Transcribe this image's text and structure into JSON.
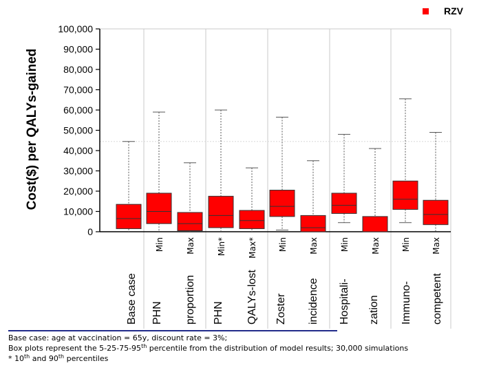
{
  "chart_data": {
    "type": "box",
    "ylabel": "Cost($) per QALYs-gained",
    "ylim": [
      0,
      100000
    ],
    "ytick_labels": [
      "0",
      "10,000",
      "20,000",
      "30,000",
      "40,000",
      "50,000",
      "60,000",
      "70,000",
      "80,000",
      "90,000",
      "100,000"
    ],
    "ytick_values": [
      0,
      10000,
      20000,
      30000,
      40000,
      50000,
      60000,
      70000,
      80000,
      90000,
      100000
    ],
    "legend": {
      "label": "RZV",
      "color": "#ff0000",
      "position": "top-right"
    },
    "box_color": "#ff0000",
    "reference_line": 44500,
    "groups": [
      {
        "label": "Base case",
        "label_lines": [
          "Base case"
        ],
        "boxes": [
          "base"
        ]
      },
      {
        "label": "PHN proportion",
        "label_lines": [
          "PHN",
          "proportion"
        ],
        "boxes": [
          "phn_prop_min",
          "phn_prop_max"
        ]
      },
      {
        "label": "PHN QALYs-lost",
        "label_lines": [
          "PHN",
          "QALYs-lost"
        ],
        "boxes": [
          "phn_qaly_min",
          "phn_qaly_max"
        ]
      },
      {
        "label": "Zoster incidence",
        "label_lines": [
          "Zoster",
          "incidence"
        ],
        "boxes": [
          "zoster_min",
          "zoster_max"
        ]
      },
      {
        "label": "Hospitalization",
        "label_lines": [
          "Hospitali-",
          "zation"
        ],
        "boxes": [
          "hosp_min",
          "hosp_max"
        ]
      },
      {
        "label": "Immunocompetent",
        "label_lines": [
          "Immuno-",
          "competent"
        ],
        "boxes": [
          "immuno_min",
          "immuno_max"
        ]
      }
    ],
    "series": [
      {
        "id": "base",
        "tick": "",
        "p5": 0,
        "p25": 1500,
        "median": 6500,
        "p75": 13500,
        "p95": 44500
      },
      {
        "id": "phn_prop_min",
        "tick": "Min",
        "p5": 0,
        "p25": 4000,
        "median": 10000,
        "p75": 19000,
        "p95": 59000
      },
      {
        "id": "phn_prop_max",
        "tick": "Max",
        "p5": 0,
        "p25": 500,
        "median": 4000,
        "p75": 9500,
        "p95": 34000
      },
      {
        "id": "phn_qaly_min",
        "tick": "Min*",
        "p5": 0,
        "p25": 2000,
        "median": 8000,
        "p75": 17500,
        "p95": 60000
      },
      {
        "id": "phn_qaly_max",
        "tick": "Max*",
        "p5": 0,
        "p25": 1500,
        "median": 5500,
        "p75": 10500,
        "p95": 31500
      },
      {
        "id": "zoster_min",
        "tick": "Min",
        "p5": 800,
        "p25": 7500,
        "median": 12500,
        "p75": 20500,
        "p95": 56500
      },
      {
        "id": "zoster_max",
        "tick": "Max",
        "p5": 0,
        "p25": 0,
        "median": 2000,
        "p75": 8000,
        "p95": 35000
      },
      {
        "id": "hosp_min",
        "tick": "Min",
        "p5": 4500,
        "p25": 9000,
        "median": 13000,
        "p75": 19000,
        "p95": 48000
      },
      {
        "id": "hosp_max",
        "tick": "Max",
        "p5": 0,
        "p25": 0,
        "median": 0,
        "p75": 7500,
        "p95": 41000
      },
      {
        "id": "immuno_min",
        "tick": "Min",
        "p5": 4500,
        "p25": 11000,
        "median": 16000,
        "p75": 25000,
        "p95": 65500
      },
      {
        "id": "immuno_max",
        "tick": "Max",
        "p5": 0,
        "p25": 3500,
        "median": 8500,
        "p75": 15500,
        "p95": 49000
      }
    ]
  },
  "footnotes": {
    "line1": "Base case: age at vaccination = 65y, discount rate = 3%;",
    "line2_pre": "Box plots represent the 5-25-75-95",
    "line2_sup": "th",
    "line2_post": "  percentile from the distribution of model results; 30,000 simulations",
    "line3_star": " * 10",
    "line3_sup1": "th",
    "line3_mid": " and 90",
    "line3_sup2": "th",
    "line3_post": " percentiles"
  }
}
